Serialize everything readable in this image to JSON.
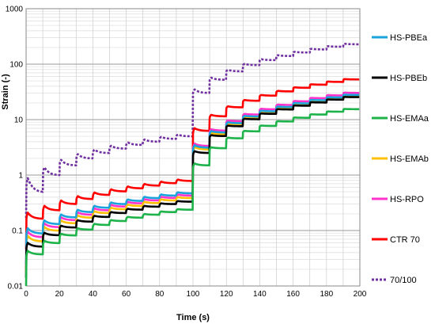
{
  "chart_data": {
    "type": "line",
    "title": "",
    "xlabel": "Time (s)",
    "ylabel": "Strain (-)",
    "xlim": [
      0,
      200
    ],
    "ylim": [
      0.01,
      1000
    ],
    "yscale": "log",
    "grid": true,
    "legend_position": "right",
    "x_ticks": [
      "0",
      "20",
      "40",
      "60",
      "80",
      "100",
      "120",
      "140",
      "160",
      "180",
      "200"
    ],
    "y_ticks": [
      "0.01",
      "0.1",
      "1",
      "10",
      "100",
      "1000"
    ],
    "series": [
      {
        "name": "HS-PBEa",
        "color": "#1ba3dc",
        "dashed": false,
        "c1": 0.07,
        "g1": 0.38,
        "k1": 0.04,
        "c2": 2.7,
        "g2": 2.75,
        "k2": 0.75,
        "d1": 0.45,
        "d2": 0.55
      },
      {
        "name": "HS-PBEb",
        "color": "#000000",
        "dashed": false,
        "c1": 0.04,
        "g1": 0.28,
        "k1": 0.02,
        "c2": 2.2,
        "g2": 2.55,
        "k2": 0.5,
        "d1": 0.55,
        "d2": 0.6
      },
      {
        "name": "HS-EMAa",
        "color": "#1db34a",
        "dashed": false,
        "c1": 0.028,
        "g1": 0.2,
        "k1": 0.015,
        "c2": 1.3,
        "g2": 1.55,
        "k2": 0.32,
        "d1": 0.6,
        "d2": 0.6
      },
      {
        "name": "HS-EMAb",
        "color": "#ffc000",
        "dashed": false,
        "c1": 0.05,
        "g1": 0.32,
        "k1": 0.03,
        "c2": 2.5,
        "g2": 2.55,
        "k2": 0.7,
        "d1": 0.45,
        "d2": 0.55
      },
      {
        "name": "HS-RPO",
        "color": "#ff33cc",
        "dashed": false,
        "c1": 0.06,
        "g1": 0.35,
        "k1": 0.035,
        "c2": 2.9,
        "g2": 3.0,
        "k2": 0.8,
        "d1": 0.45,
        "d2": 0.55
      },
      {
        "name": "CTR 70",
        "color": "#ff0000",
        "dashed": false,
        "c1": 0.13,
        "g1": 0.62,
        "k1": 0.08,
        "c2": 5.5,
        "g2": 5.2,
        "k2": 1.5,
        "d1": 0.4,
        "d2": 0.5
      },
      {
        "name": "70/100",
        "color": "#7030a0",
        "dashed": true,
        "c1": 0.48,
        "g1": 4.5,
        "k1": 0.4,
        "c2": 30,
        "g2": 22.0,
        "k2": 5.0,
        "d1": 0.02,
        "d2": 0.03
      }
    ]
  }
}
